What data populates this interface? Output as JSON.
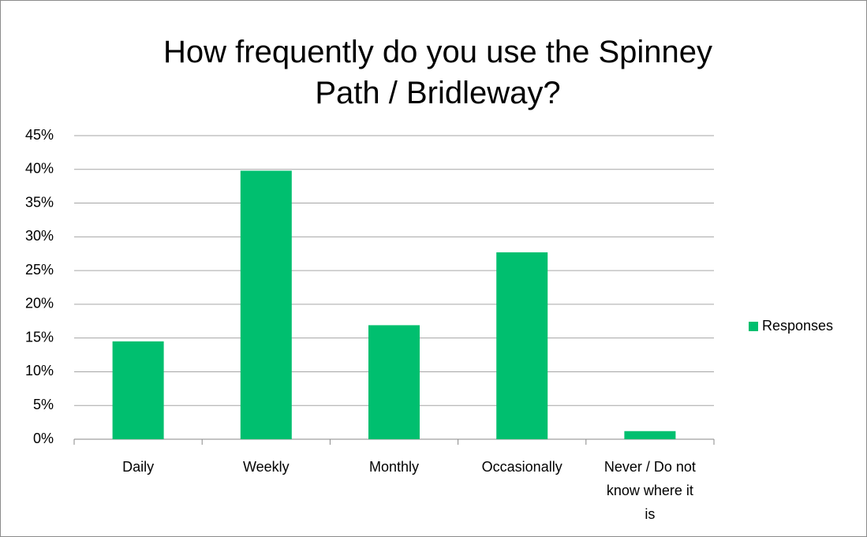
{
  "chart_data": {
    "type": "bar",
    "title": "How frequently do you use the Spinney\nPath / Bridleway?",
    "categories": [
      "Daily",
      "Weekly",
      "Monthly",
      "Occasionally",
      "Never / Do not\nknow where it\nis"
    ],
    "series": [
      {
        "name": "Responses",
        "color": "#00bf6f",
        "values": [
          14.5,
          39.8,
          16.9,
          27.7,
          1.2
        ]
      }
    ],
    "ylim": [
      0,
      45
    ],
    "yticks": [
      {
        "value": 0,
        "label": "0%"
      },
      {
        "value": 5,
        "label": "5%"
      },
      {
        "value": 10,
        "label": "10%"
      },
      {
        "value": 15,
        "label": "15%"
      },
      {
        "value": 20,
        "label": "20%"
      },
      {
        "value": 25,
        "label": "25%"
      },
      {
        "value": 30,
        "label": "30%"
      },
      {
        "value": 35,
        "label": "35%"
      },
      {
        "value": 40,
        "label": "40%"
      },
      {
        "value": 45,
        "label": "45%"
      }
    ],
    "grid": true,
    "legend": "right"
  }
}
